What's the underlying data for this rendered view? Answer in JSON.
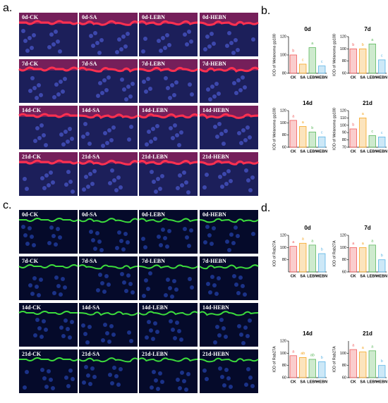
{
  "panels": {
    "a": {
      "letter": "a.",
      "labels": [
        "0d-CK",
        "0d-SA",
        "0d-LEBN",
        "0d-HEBN",
        "7d-CK",
        "7d-SA",
        "7d-LEBN",
        "7d-HEBN",
        "14d-CK",
        "14d-SA",
        "14d-LEBN",
        "14d-HEBN",
        "21d-CK",
        "21d-SA",
        "21d-LEBN",
        "21d-HEBN"
      ]
    },
    "b": {
      "letter": "b."
    },
    "c": {
      "letter": "c.",
      "labels": [
        "0d-CK",
        "0d-SA",
        "0d-LEBN",
        "0d-HEBN",
        "7d-CK",
        "7d-SA",
        "7d-LEBN",
        "7d-HEBN",
        "14d-CK",
        "14d-SA",
        "14d-LEBN",
        "14d-HEBN",
        "21d-CK",
        "21d-SA",
        "21d-LEBN",
        "21d-HEBN"
      ]
    },
    "d": {
      "letter": "d."
    }
  },
  "chart_data": [
    {
      "type": "bar",
      "title": "0d",
      "y_label": "IOD of Melanoma gp100",
      "categories": [
        "CK",
        "SA",
        "LEBN",
        "HEBN"
      ],
      "colors": [
        "#f05a5a",
        "#f5a623",
        "#5cb85c",
        "#5ab4e5"
      ],
      "values": [
        100,
        90,
        108,
        88
      ],
      "annotations": [
        "b",
        "c",
        "a",
        "c"
      ],
      "ylim": [
        80,
        120
      ],
      "yticks": [
        80,
        100,
        120
      ]
    },
    {
      "type": "bar",
      "title": "7d",
      "y_label": "IOD of Melanoma gp100",
      "categories": [
        "CK",
        "SA",
        "LEBN",
        "HEBN"
      ],
      "colors": [
        "#f05a5a",
        "#f5a623",
        "#5cb85c",
        "#5ab4e5"
      ],
      "values": [
        100,
        100,
        108,
        82
      ],
      "annotations": [
        "b",
        "b",
        "a",
        "c"
      ],
      "ylim": [
        60,
        120
      ],
      "yticks": [
        60,
        80,
        100,
        120
      ]
    },
    {
      "type": "bar",
      "title": "14d",
      "y_label": "IOD of Melanoma gp100",
      "categories": [
        "CK",
        "SA",
        "LEBN",
        "HEBN"
      ],
      "colors": [
        "#f05a5a",
        "#f5a623",
        "#5cb85c",
        "#5ab4e5"
      ],
      "values": [
        104,
        94,
        85,
        77
      ],
      "annotations": [
        "a",
        "a",
        "b",
        "c"
      ],
      "ylim": [
        60,
        120
      ],
      "yticks": [
        60,
        80,
        100,
        120
      ]
    },
    {
      "type": "bar",
      "title": "21d",
      "y_label": "IOD of Melanoma gp100",
      "categories": [
        "CK",
        "SA",
        "LEBN",
        "HEBN"
      ],
      "colors": [
        "#f05a5a",
        "#f5a623",
        "#5cb85c",
        "#5ab4e5"
      ],
      "values": [
        95,
        110,
        86,
        84
      ],
      "annotations": [
        "b",
        "a",
        "c",
        "c"
      ],
      "ylim": [
        70,
        120
      ],
      "yticks": [
        70,
        80,
        90,
        100,
        110,
        120
      ]
    },
    {
      "type": "bar",
      "title": "0d",
      "y_label": "IOD of Rab27A",
      "categories": [
        "CK",
        "SA",
        "LEBN",
        "HEBN"
      ],
      "colors": [
        "#f05a5a",
        "#f5a623",
        "#5cb85c",
        "#5ab4e5"
      ],
      "values": [
        102,
        107,
        104,
        90
      ],
      "annotations": [
        "a",
        "a",
        "a",
        "b"
      ],
      "ylim": [
        60,
        120
      ],
      "yticks": [
        80,
        100,
        120
      ]
    },
    {
      "type": "bar",
      "title": "7d",
      "y_label": "IOD of Rab27A",
      "categories": [
        "CK",
        "SA",
        "LEBN",
        "HEBN"
      ],
      "colors": [
        "#f05a5a",
        "#f5a623",
        "#5cb85c",
        "#5ab4e5"
      ],
      "values": [
        100,
        100,
        104,
        80
      ],
      "annotations": [
        "a",
        "a",
        "a",
        "b"
      ],
      "ylim": [
        60,
        120
      ],
      "yticks": [
        60,
        80,
        100,
        120
      ]
    },
    {
      "type": "bar",
      "title": "14d",
      "y_label": "IOD of Rab27A",
      "categories": [
        "CK",
        "SA",
        "LEBN",
        "HEBN"
      ],
      "colors": [
        "#f05a5a",
        "#f5a623",
        "#5cb85c",
        "#5ab4e5"
      ],
      "values": [
        96,
        93,
        90,
        86
      ],
      "annotations": [
        "a",
        "ab",
        "ab",
        "b"
      ],
      "ylim": [
        60,
        120
      ],
      "yticks": [
        60,
        80,
        100,
        120
      ]
    },
    {
      "type": "bar",
      "title": "21d",
      "y_label": "IOD of Rab27A",
      "categories": [
        "CK",
        "SA",
        "LEBN",
        "HEBN"
      ],
      "colors": [
        "#f05a5a",
        "#f5a623",
        "#5cb85c",
        "#5ab4e5"
      ],
      "values": [
        106,
        102,
        104,
        80
      ],
      "annotations": [
        "a",
        "a",
        "a",
        "b"
      ],
      "ylim": [
        60,
        120
      ],
      "yticks": [
        60,
        80,
        100
      ]
    }
  ]
}
